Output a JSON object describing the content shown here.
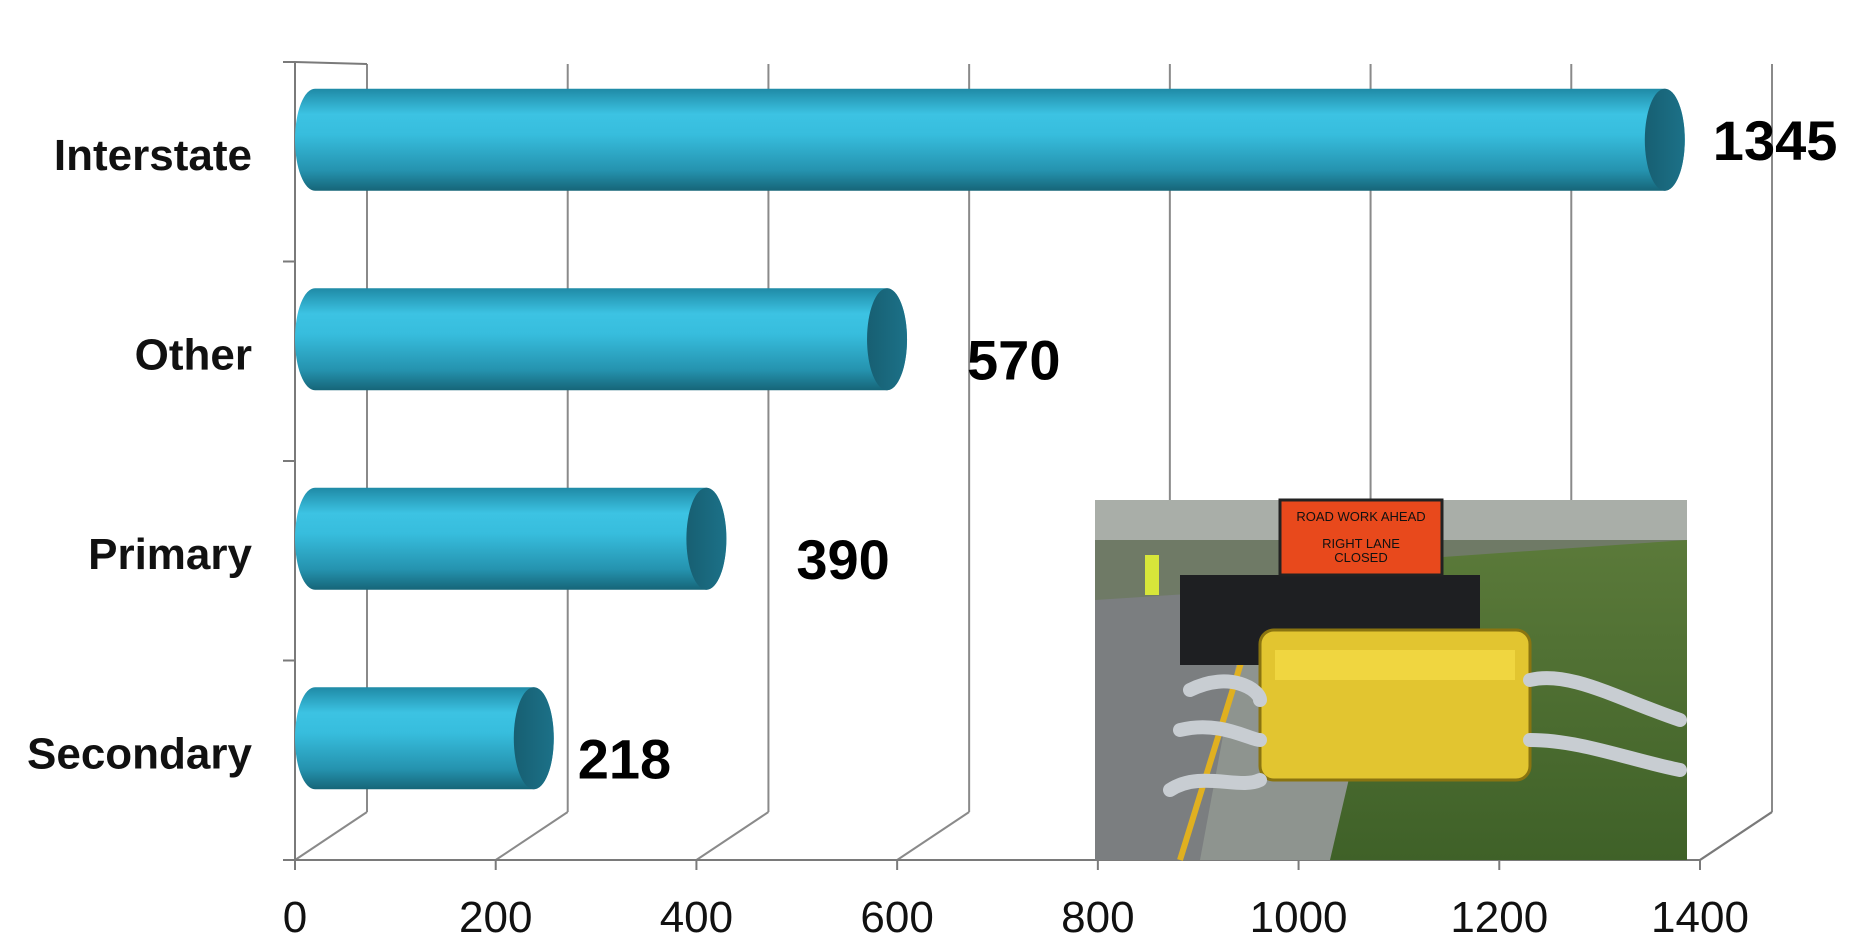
{
  "chart_data": {
    "type": "bar",
    "orientation": "horizontal",
    "style": "3d-cylinder",
    "categories": [
      "Interstate",
      "Other",
      "Primary",
      "Secondary"
    ],
    "values": [
      1345,
      570,
      390,
      218
    ],
    "data_labels": [
      "1345",
      "570",
      "390",
      "218"
    ],
    "xlim": [
      0,
      1400
    ],
    "xticks": [
      "0",
      "200",
      "400",
      "600",
      "800",
      "1000",
      "1200",
      "1400"
    ],
    "grid": true,
    "legend": "none",
    "bar_color": "#2fb5d6",
    "bar_dark": "#1a6b80"
  },
  "inset_photo": {
    "sign_line1": "ROAD WORK AHEAD",
    "sign_line2": "RIGHT    LANE",
    "sign_line3": "CLOSED"
  }
}
